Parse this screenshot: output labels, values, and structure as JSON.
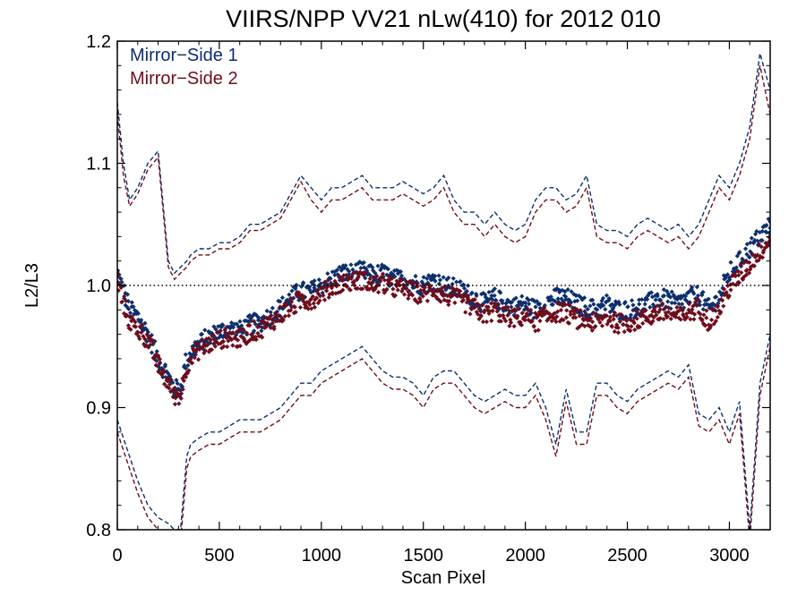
{
  "chart_data": {
    "type": "scatter",
    "title": "VIIRS/NPP VV21 nLw(410) for 2012 010",
    "xlabel": "Scan Pixel",
    "ylabel": "L2/L3",
    "xlim": [
      0,
      3200
    ],
    "ylim": [
      0.8,
      1.2
    ],
    "x_ticks": [
      0,
      500,
      1000,
      1500,
      2000,
      2500,
      3000
    ],
    "y_ticks": [
      0.8,
      0.9,
      1.0,
      1.1,
      1.2
    ],
    "x_tick_labels": [
      "0",
      "500",
      "1000",
      "1500",
      "2000",
      "2500",
      "3000"
    ],
    "y_tick_labels": [
      "0.8",
      "0.9",
      "1.0",
      "1.1",
      "1.2"
    ],
    "reference_line": {
      "y": 1.0,
      "style": "dotted",
      "color": "#000000"
    },
    "legend_position": "top-left",
    "grid": false,
    "series": [
      {
        "name": "Mirror−Side 1",
        "color": "#0d2f6e",
        "mean_x": [
          0,
          30,
          60,
          100,
          150,
          200,
          250,
          280,
          310,
          340,
          360,
          400,
          450,
          500,
          550,
          600,
          650,
          700,
          750,
          800,
          850,
          900,
          950,
          1000,
          1050,
          1100,
          1150,
          1200,
          1250,
          1300,
          1350,
          1400,
          1450,
          1500,
          1550,
          1600,
          1650,
          1700,
          1750,
          1800,
          1850,
          1900,
          1950,
          2000,
          2050,
          2100,
          2150,
          2200,
          2250,
          2300,
          2350,
          2400,
          2450,
          2500,
          2550,
          2600,
          2650,
          2700,
          2750,
          2800,
          2850,
          2900,
          2950,
          3000,
          3050,
          3100,
          3150,
          3200
        ],
        "mean_y": [
          1.01,
          0.995,
          0.98,
          0.975,
          0.96,
          0.94,
          0.925,
          0.915,
          0.915,
          0.94,
          0.945,
          0.952,
          0.958,
          0.962,
          0.965,
          0.963,
          0.968,
          0.97,
          0.975,
          0.982,
          0.99,
          0.995,
          0.995,
          1.0,
          1.005,
          1.01,
          1.01,
          1.012,
          1.008,
          1.01,
          1.005,
          1.005,
          1.002,
          1.0,
          1.005,
          1.0,
          0.998,
          0.995,
          0.99,
          0.985,
          0.99,
          0.985,
          0.983,
          0.985,
          0.98,
          0.985,
          0.99,
          0.99,
          0.985,
          0.982,
          0.98,
          0.985,
          0.98,
          0.98,
          0.982,
          0.985,
          0.99,
          0.988,
          0.985,
          0.99,
          0.992,
          0.98,
          0.99,
          1.01,
          1.02,
          1.03,
          1.04,
          1.05
        ],
        "upper_y": [
          1.15,
          1.1,
          1.07,
          1.08,
          1.1,
          1.11,
          1.02,
          1.01,
          1.015,
          1.02,
          1.025,
          1.03,
          1.03,
          1.035,
          1.035,
          1.04,
          1.05,
          1.05,
          1.055,
          1.06,
          1.075,
          1.09,
          1.08,
          1.07,
          1.08,
          1.08,
          1.085,
          1.09,
          1.08,
          1.08,
          1.08,
          1.085,
          1.08,
          1.075,
          1.08,
          1.09,
          1.07,
          1.06,
          1.06,
          1.05,
          1.06,
          1.05,
          1.045,
          1.05,
          1.07,
          1.08,
          1.08,
          1.07,
          1.075,
          1.09,
          1.05,
          1.045,
          1.045,
          1.04,
          1.05,
          1.055,
          1.05,
          1.045,
          1.05,
          1.04,
          1.05,
          1.07,
          1.09,
          1.08,
          1.1,
          1.13,
          1.19,
          1.16
        ],
        "lower_y": [
          0.89,
          0.875,
          0.86,
          0.84,
          0.82,
          0.81,
          0.805,
          0.8,
          0.8,
          0.86,
          0.87,
          0.875,
          0.88,
          0.88,
          0.885,
          0.89,
          0.89,
          0.89,
          0.895,
          0.9,
          0.91,
          0.92,
          0.92,
          0.93,
          0.935,
          0.94,
          0.945,
          0.95,
          0.94,
          0.93,
          0.925,
          0.925,
          0.92,
          0.91,
          0.925,
          0.93,
          0.93,
          0.92,
          0.91,
          0.905,
          0.91,
          0.915,
          0.91,
          0.91,
          0.92,
          0.9,
          0.87,
          0.915,
          0.88,
          0.88,
          0.92,
          0.92,
          0.91,
          0.905,
          0.915,
          0.92,
          0.925,
          0.93,
          0.925,
          0.935,
          0.895,
          0.89,
          0.9,
          0.88,
          0.905,
          0.8,
          0.92,
          0.96
        ]
      },
      {
        "name": "Mirror−Side 2",
        "color": "#6e0d1c",
        "mean_x": [
          0,
          30,
          60,
          100,
          150,
          200,
          250,
          280,
          310,
          340,
          360,
          400,
          450,
          500,
          550,
          600,
          650,
          700,
          750,
          800,
          850,
          900,
          950,
          1000,
          1050,
          1100,
          1150,
          1200,
          1250,
          1300,
          1350,
          1400,
          1450,
          1500,
          1550,
          1600,
          1650,
          1700,
          1750,
          1800,
          1850,
          1900,
          1950,
          2000,
          2050,
          2100,
          2150,
          2200,
          2250,
          2300,
          2350,
          2400,
          2450,
          2500,
          2550,
          2600,
          2650,
          2700,
          2750,
          2800,
          2850,
          2900,
          2950,
          3000,
          3050,
          3100,
          3150,
          3200
        ],
        "mean_y": [
          1.005,
          0.985,
          0.97,
          0.965,
          0.955,
          0.935,
          0.92,
          0.91,
          0.91,
          0.935,
          0.94,
          0.947,
          0.952,
          0.956,
          0.958,
          0.956,
          0.962,
          0.964,
          0.97,
          0.976,
          0.982,
          0.988,
          0.988,
          0.994,
          0.998,
          1.003,
          1.003,
          1.005,
          1.0,
          1.002,
          0.998,
          0.997,
          0.995,
          0.992,
          0.997,
          0.992,
          0.99,
          0.986,
          0.981,
          0.976,
          0.98,
          0.975,
          0.973,
          0.975,
          0.97,
          0.974,
          0.978,
          0.978,
          0.973,
          0.971,
          0.969,
          0.974,
          0.969,
          0.969,
          0.972,
          0.974,
          0.978,
          0.977,
          0.974,
          0.978,
          0.982,
          0.97,
          0.98,
          0.998,
          1.008,
          1.018,
          1.028,
          1.038
        ],
        "upper_y": [
          1.14,
          1.09,
          1.065,
          1.075,
          1.095,
          1.105,
          1.015,
          1.005,
          1.01,
          1.015,
          1.02,
          1.025,
          1.025,
          1.03,
          1.03,
          1.035,
          1.045,
          1.045,
          1.05,
          1.055,
          1.07,
          1.085,
          1.07,
          1.06,
          1.07,
          1.07,
          1.075,
          1.08,
          1.07,
          1.07,
          1.07,
          1.075,
          1.07,
          1.065,
          1.07,
          1.08,
          1.06,
          1.05,
          1.05,
          1.04,
          1.05,
          1.04,
          1.035,
          1.04,
          1.06,
          1.07,
          1.07,
          1.06,
          1.065,
          1.08,
          1.04,
          1.035,
          1.035,
          1.03,
          1.04,
          1.045,
          1.04,
          1.035,
          1.04,
          1.03,
          1.04,
          1.06,
          1.08,
          1.07,
          1.09,
          1.12,
          1.18,
          1.14
        ],
        "lower_y": [
          0.88,
          0.865,
          0.85,
          0.83,
          0.81,
          0.8,
          0.795,
          0.79,
          0.79,
          0.85,
          0.86,
          0.865,
          0.87,
          0.87,
          0.875,
          0.88,
          0.88,
          0.88,
          0.885,
          0.89,
          0.9,
          0.91,
          0.91,
          0.92,
          0.925,
          0.93,
          0.935,
          0.94,
          0.93,
          0.92,
          0.915,
          0.915,
          0.91,
          0.9,
          0.915,
          0.92,
          0.92,
          0.91,
          0.9,
          0.895,
          0.9,
          0.905,
          0.9,
          0.9,
          0.91,
          0.89,
          0.86,
          0.905,
          0.87,
          0.87,
          0.91,
          0.91,
          0.9,
          0.895,
          0.905,
          0.91,
          0.915,
          0.92,
          0.915,
          0.925,
          0.885,
          0.88,
          0.89,
          0.87,
          0.895,
          0.79,
          0.91,
          0.95
        ]
      }
    ]
  }
}
